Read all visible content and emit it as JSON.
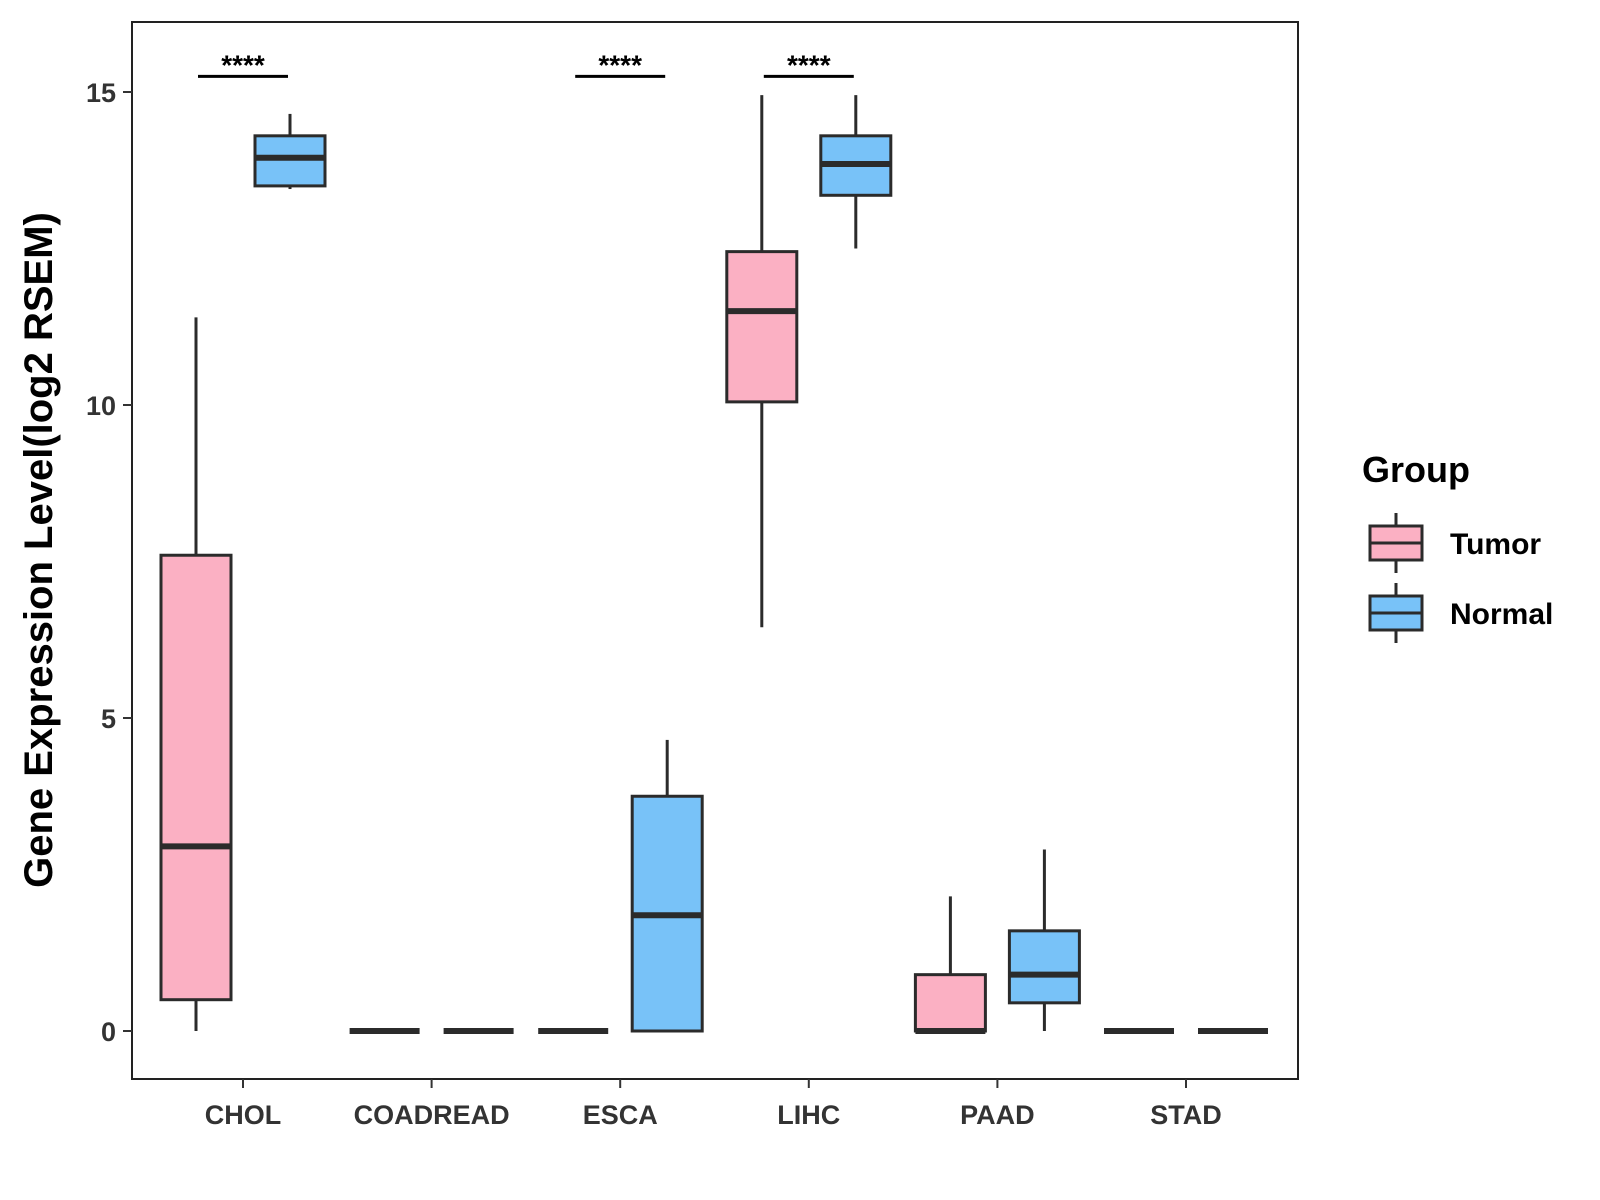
{
  "chart_data": {
    "type": "boxplot",
    "title": "",
    "xlabel": "",
    "ylabel": "Gene Expression Level(log2 RSEM)",
    "ylim": [
      -0.75,
      16.1
    ],
    "yticks": [
      0,
      5,
      10,
      15
    ],
    "grid": false,
    "legend": {
      "title": "Group",
      "position": "right",
      "entries": [
        "Tumor",
        "Normal"
      ]
    },
    "colors": {
      "Tumor": "#fbb0c3",
      "Normal": "#78c2f8",
      "outline": "#2b2b2b"
    },
    "categories": [
      "CHOL",
      "COADREAD",
      "ESCA",
      "LIHC",
      "PAAD",
      "STAD"
    ],
    "series": [
      {
        "name": "Tumor",
        "boxes": [
          {
            "min": 0.0,
            "q1": 0.5,
            "median": 2.95,
            "q3": 7.6,
            "max": 11.4
          },
          {
            "min": 0.0,
            "q1": 0.0,
            "median": 0.0,
            "q3": 0.0,
            "max": 0.0
          },
          {
            "min": 0.0,
            "q1": 0.0,
            "median": 0.0,
            "q3": 0.0,
            "max": 0.0
          },
          {
            "min": 6.45,
            "q1": 10.05,
            "median": 11.5,
            "q3": 12.45,
            "max": 14.95
          },
          {
            "min": 0.0,
            "q1": 0.0,
            "median": 0.0,
            "q3": 0.9,
            "max": 2.15
          },
          {
            "min": 0.0,
            "q1": 0.0,
            "median": 0.0,
            "q3": 0.0,
            "max": 0.0
          }
        ]
      },
      {
        "name": "Normal",
        "boxes": [
          {
            "min": 13.45,
            "q1": 13.5,
            "median": 13.95,
            "q3": 14.3,
            "max": 14.65
          },
          {
            "min": 0.0,
            "q1": 0.0,
            "median": 0.0,
            "q3": 0.0,
            "max": 0.0
          },
          {
            "min": 0.0,
            "q1": 0.0,
            "median": 1.85,
            "q3": 3.75,
            "max": 4.65
          },
          {
            "min": 12.5,
            "q1": 13.35,
            "median": 13.85,
            "q3": 14.3,
            "max": 14.95
          },
          {
            "min": 0.0,
            "q1": 0.45,
            "median": 0.9,
            "q3": 1.6,
            "max": 2.9
          },
          {
            "min": 0.0,
            "q1": 0.0,
            "median": 0.0,
            "q3": 0.0,
            "max": 0.0
          }
        ]
      }
    ],
    "annotations": [
      {
        "category": "CHOL",
        "label": "****",
        "y": 15.25
      },
      {
        "category": "ESCA",
        "label": "****",
        "y": 15.25
      },
      {
        "category": "LIHC",
        "label": "****",
        "y": 15.25
      }
    ]
  }
}
